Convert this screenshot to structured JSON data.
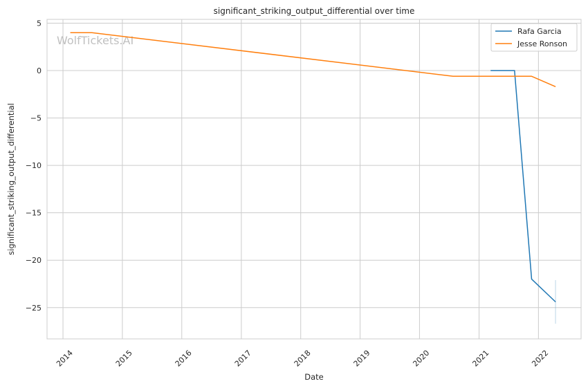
{
  "chart_data": {
    "type": "line",
    "title": "significant_striking_output_differential over time",
    "xlabel": "Date",
    "ylabel": "significant_striking_output_differential",
    "watermark": "WolfTickets.AI",
    "x_axis_kind": "date",
    "xlim": [
      "2013-09-25",
      "2022-09-20"
    ],
    "ylim": [
      -28.3,
      5.4
    ],
    "x_ticks": [
      "2014",
      "2015",
      "2016",
      "2017",
      "2018",
      "2019",
      "2020",
      "2021",
      "2022"
    ],
    "x_tick_dates": [
      "2014-01-01",
      "2015-01-01",
      "2016-01-01",
      "2017-01-01",
      "2018-01-01",
      "2019-01-01",
      "2020-01-01",
      "2021-01-01",
      "2022-01-01"
    ],
    "y_ticks": [
      5,
      0,
      -5,
      -10,
      -15,
      -20,
      -25
    ],
    "y_tick_labels": [
      "5",
      "0",
      "−5",
      "−10",
      "−15",
      "−20",
      "−25"
    ],
    "grid": true,
    "legend_position": "top-right",
    "series": [
      {
        "name": "Rafa Garcia",
        "color": "#1f77b4",
        "points": [
          {
            "x": "2021-03-13",
            "y": 0.0
          },
          {
            "x": "2021-08-07",
            "y": 0.0
          },
          {
            "x": "2021-11-20",
            "y": -22.0
          },
          {
            "x": "2022-04-16",
            "y": -24.4
          }
        ],
        "error_band": {
          "x": "2022-04-16",
          "low": -26.7,
          "high": -22.1
        }
      },
      {
        "name": "Jesse Ronson",
        "color": "#ff7f0e",
        "points": [
          {
            "x": "2014-02-15",
            "y": 4.0
          },
          {
            "x": "2014-06-28",
            "y": 4.0
          },
          {
            "x": "2020-07-25",
            "y": -0.6
          },
          {
            "x": "2021-11-20",
            "y": -0.6
          },
          {
            "x": "2022-04-16",
            "y": -1.7
          }
        ]
      }
    ]
  }
}
